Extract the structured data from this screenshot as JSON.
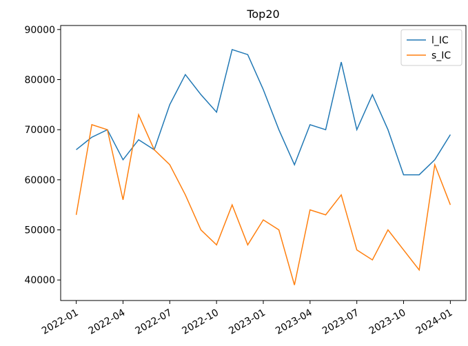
{
  "chart_data": {
    "type": "line",
    "title": "Top20",
    "x": [
      "2022-01",
      "2022-02",
      "2022-03",
      "2022-04",
      "2022-05",
      "2022-06",
      "2022-07",
      "2022-08",
      "2022-09",
      "2022-10",
      "2022-11",
      "2022-12",
      "2023-01",
      "2023-02",
      "2023-03",
      "2023-04",
      "2023-05",
      "2023-06",
      "2023-07",
      "2023-08",
      "2023-09",
      "2023-10",
      "2023-11",
      "2023-12",
      "2024-01"
    ],
    "series": [
      {
        "name": "l_IC",
        "color": "#1f77b4",
        "values": [
          66000,
          68500,
          70000,
          64000,
          68000,
          66000,
          75000,
          81000,
          77000,
          73500,
          86000,
          85000,
          78000,
          70000,
          63000,
          71000,
          70000,
          83500,
          70000,
          77000,
          70000,
          61000,
          61000,
          64000,
          69000
        ]
      },
      {
        "name": "s_IC",
        "color": "#ff7f0e",
        "values": [
          53000,
          71000,
          70000,
          56000,
          73000,
          66000,
          63000,
          57000,
          50000,
          47000,
          55000,
          47000,
          52000,
          50000,
          39000,
          54000,
          53000,
          57000,
          46000,
          44000,
          50000,
          46000,
          42000,
          63000,
          55000
        ]
      }
    ],
    "xlim": [
      "2021-12",
      "2024-02"
    ],
    "xticks": [
      "2022-01",
      "2022-04",
      "2022-07",
      "2022-10",
      "2023-01",
      "2023-04",
      "2023-07",
      "2023-10",
      "2024-01"
    ],
    "ylim": [
      35900,
      90800
    ],
    "yticks": [
      40000,
      50000,
      60000,
      70000,
      80000,
      90000
    ],
    "grid": false,
    "legend": "upper right"
  }
}
